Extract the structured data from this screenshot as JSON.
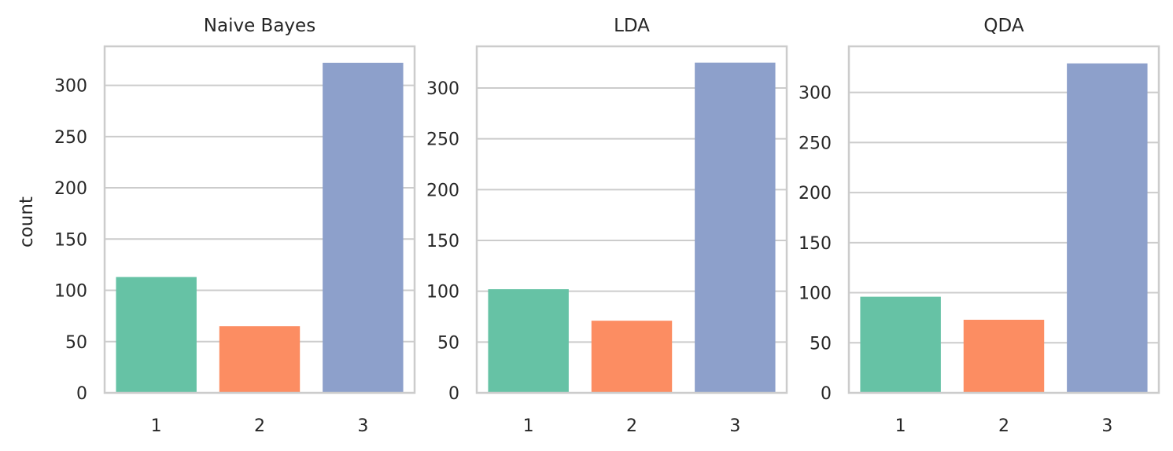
{
  "chart_data": [
    {
      "type": "bar",
      "title": "Naive Bayes",
      "xlabel": "",
      "ylabel": "count",
      "categories": [
        "1",
        "2",
        "3"
      ],
      "values": [
        113,
        65,
        322
      ],
      "colors": [
        "#66c2a5",
        "#fc8d62",
        "#8da0cb"
      ],
      "ylim": [
        0,
        338
      ],
      "yticks": [
        0,
        50,
        100,
        150,
        200,
        250,
        300
      ],
      "grid": true
    },
    {
      "type": "bar",
      "title": "LDA",
      "xlabel": "",
      "ylabel": "",
      "categories": [
        "1",
        "2",
        "3"
      ],
      "values": [
        102,
        71,
        325
      ],
      "colors": [
        "#66c2a5",
        "#fc8d62",
        "#8da0cb"
      ],
      "ylim": [
        0,
        341
      ],
      "yticks": [
        0,
        50,
        100,
        150,
        200,
        250,
        300
      ],
      "grid": true
    },
    {
      "type": "bar",
      "title": "QDA",
      "xlabel": "",
      "ylabel": "",
      "categories": [
        "1",
        "2",
        "3"
      ],
      "values": [
        96,
        73,
        329
      ],
      "colors": [
        "#66c2a5",
        "#fc8d62",
        "#8da0cb"
      ],
      "ylim": [
        0,
        346
      ],
      "yticks": [
        0,
        50,
        100,
        150,
        200,
        250,
        300
      ],
      "grid": true
    }
  ]
}
